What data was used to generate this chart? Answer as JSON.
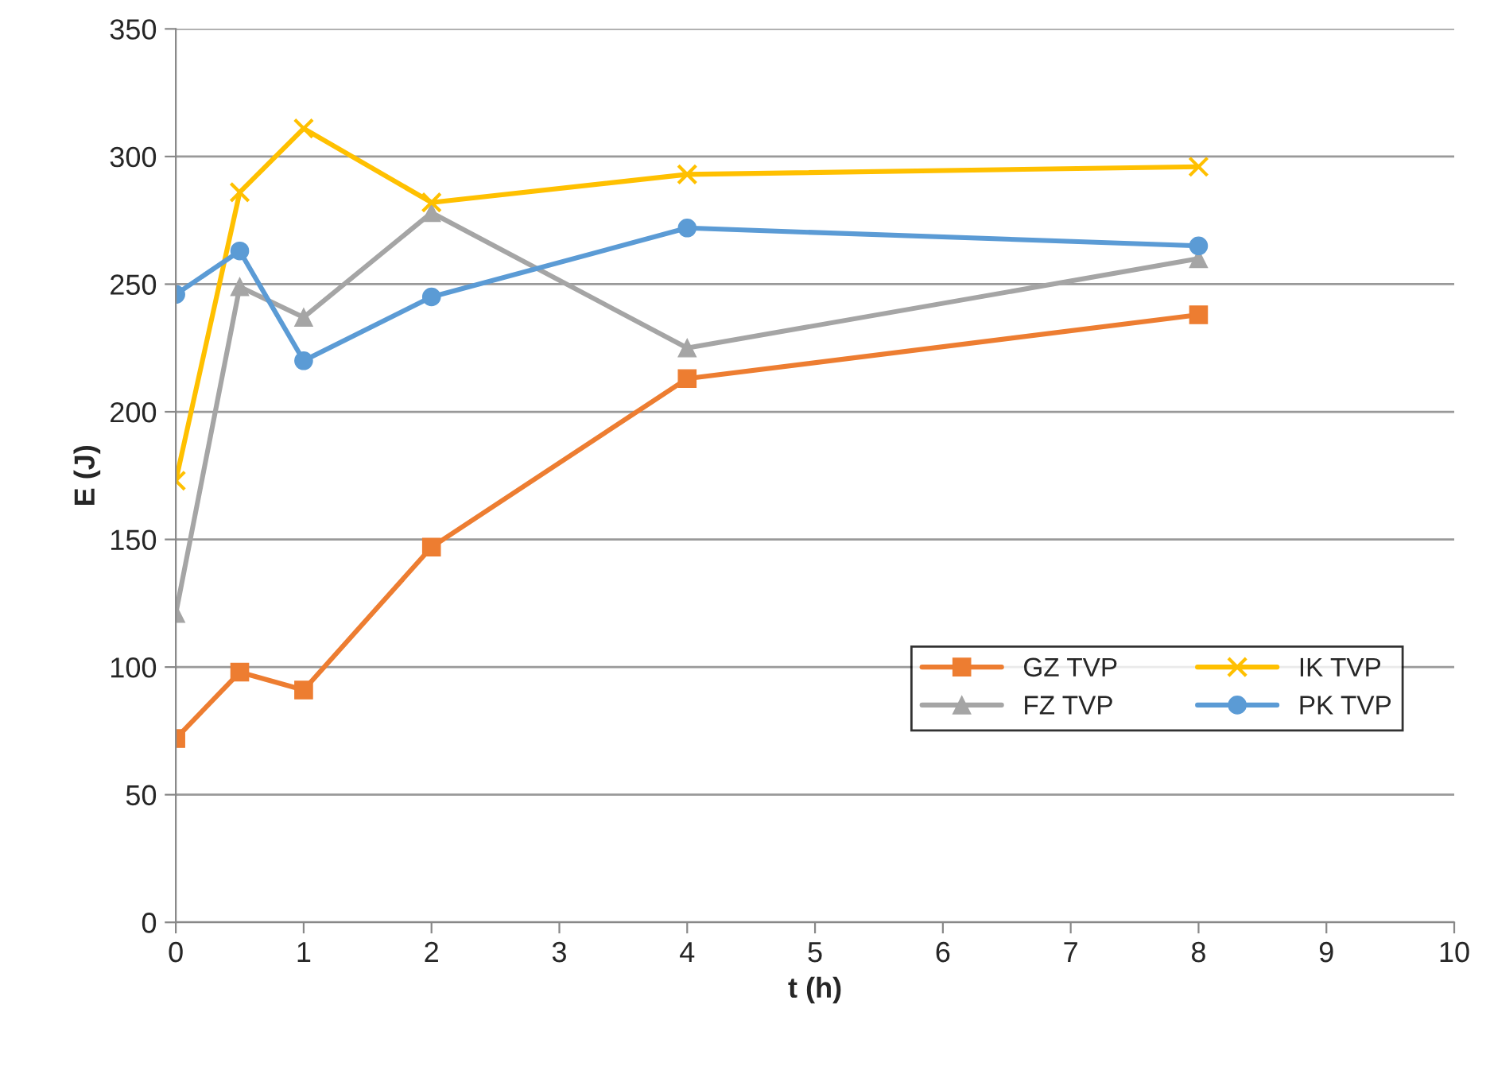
{
  "chart_data": {
    "type": "line",
    "xlabel": "t (h)",
    "ylabel": "E (J)",
    "xlim": [
      0,
      10
    ],
    "xticks": [
      0,
      1,
      2,
      3,
      4,
      5,
      6,
      7,
      8,
      9,
      10
    ],
    "ylim": [
      0,
      350
    ],
    "yticks": [
      0,
      50,
      100,
      150,
      200,
      250,
      300,
      350
    ],
    "grid": "y",
    "legend": "bottom right",
    "series": [
      {
        "name": "GZ TVP",
        "color": "#ed7d31",
        "marker": "square",
        "x": [
          0,
          0.5,
          1,
          2,
          4,
          8
        ],
        "values": [
          72,
          98,
          91,
          147,
          213,
          238
        ]
      },
      {
        "name": "FZ TVP",
        "color": "#a5a5a5",
        "marker": "triangle",
        "x": [
          0,
          0.5,
          1,
          2,
          4,
          8
        ],
        "values": [
          121,
          249,
          237,
          278,
          225,
          260
        ]
      },
      {
        "name": "IK TVP",
        "color": "#ffc000",
        "marker": "cross",
        "x": [
          0,
          0.5,
          1,
          2,
          4,
          8
        ],
        "values": [
          173,
          286,
          311,
          282,
          293,
          296
        ]
      },
      {
        "name": "PK TVP",
        "color": "#5b9bd5",
        "marker": "circle",
        "x": [
          0,
          0.5,
          1,
          2,
          4,
          8
        ],
        "values": [
          246,
          263,
          220,
          245,
          272,
          265
        ]
      }
    ]
  }
}
